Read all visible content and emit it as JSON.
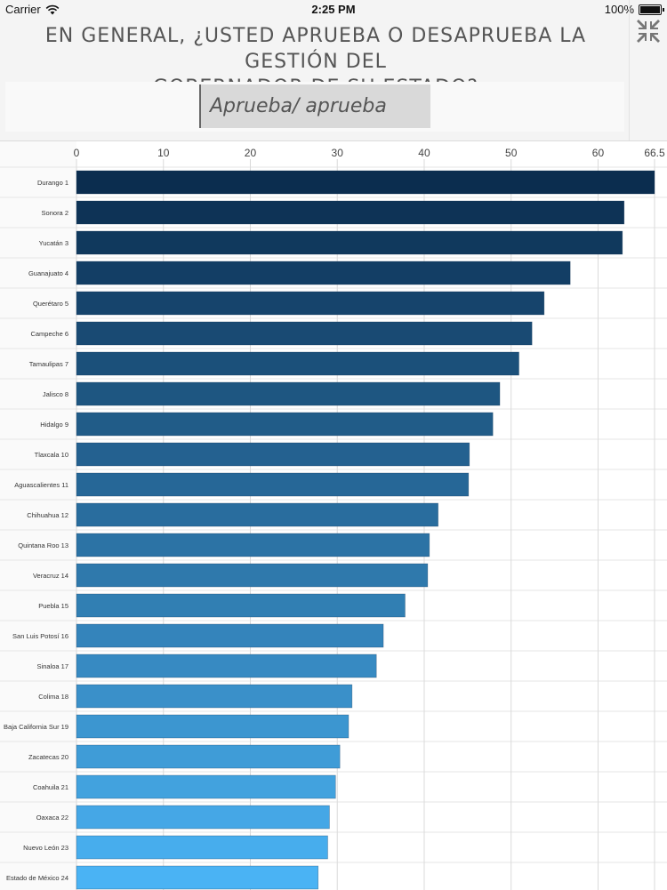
{
  "status_bar": {
    "carrier": "Carrier",
    "time": "2:25 PM",
    "battery": "100%"
  },
  "header": {
    "title_line1": "EN GENERAL, ¿USTED APRUEBA O DESAPRUEBA LA GESTIÓN DEL",
    "title_line2": "GOBERNADOR DE SU ESTADO?",
    "collapse_icon": "collapse-arrows-icon"
  },
  "filter": {
    "selected": "Aprueba/ aprueba algo"
  },
  "chart_data": {
    "type": "bar",
    "orientation": "horizontal",
    "title": "EN GENERAL, ¿USTED APRUEBA O DESAPRUEBA LA GESTIÓN DEL GOBERNADOR DE SU ESTADO?",
    "xlabel": "",
    "ylabel": "",
    "xlim": [
      0,
      66.5
    ],
    "x_ticks": [
      "0",
      "10",
      "20",
      "30",
      "40",
      "50",
      "60",
      "66.5"
    ],
    "tick_values": [
      0,
      10,
      20,
      30,
      40,
      50,
      60,
      66.5
    ],
    "grid": true,
    "categories": [
      "Durango 1",
      "Sonora 2",
      "Yucatán 3",
      "Guanajuato 4",
      "Querétaro 5",
      "Campeche 6",
      "Tamaulipas 7",
      "Jalisco 8",
      "Hidalgo 9",
      "Tlaxcala 10",
      "Aguascalientes 11",
      "Chihuahua 12",
      "Quintana Roo 13",
      "Veracruz 14",
      "Puebla 15",
      "San Luis Potosí 16",
      "Sinaloa 17",
      "Colima 18",
      "Baja California Sur 19",
      "Zacatecas 20",
      "Coahuila 21",
      "Oaxaca 22",
      "Nuevo León 23",
      "Estado de México 24"
    ],
    "values": [
      66.5,
      63.0,
      62.8,
      56.8,
      53.8,
      52.4,
      50.9,
      48.7,
      47.9,
      45.2,
      45.1,
      41.6,
      40.6,
      40.4,
      37.8,
      35.3,
      34.5,
      31.7,
      31.3,
      30.3,
      29.8,
      29.1,
      28.9,
      27.8
    ],
    "colors": {
      "start": "#0b2d4f",
      "end": "#4ab3f4",
      "bar_stroke": "#1a3a5a"
    }
  }
}
